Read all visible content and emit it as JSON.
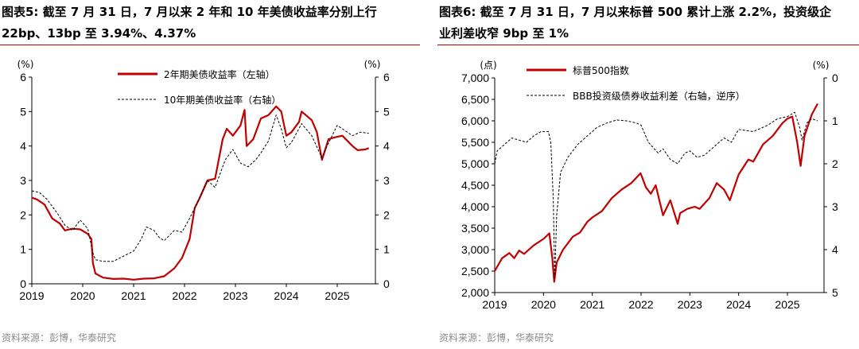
{
  "panels": [
    {
      "title_line1": "图表5:  截至 7 月 31 日，7 月以来 2 年和 10 年美债收益率分别上行",
      "title_line2": "22bp、13bp 至 3.94%、4.37%",
      "source": "资料来源：彭博，华泰研究",
      "colors": {
        "series1": "#c00000",
        "series2": "#000000",
        "accent": "#c00000"
      }
    },
    {
      "title_line1": "图表6:  截至 7 月 31 日，7 月以来标普 500 累计上涨 2.2%，投资级企",
      "title_line2": "业利差收窄 9bp 至 1%",
      "source": "资料来源：彭博，华泰研究",
      "colors": {
        "series1": "#c00000",
        "series2": "#000000",
        "accent": "#c00000"
      }
    }
  ],
  "chart_data": [
    {
      "type": "line",
      "title": "截至 7 月 31 日，7 月以来 2 年和 10 年美债收益率分别上行 22bp、13bp 至 3.94%、4.37%",
      "x_ticks": [
        "2019",
        "2020",
        "2021",
        "2022",
        "2023",
        "2024",
        "2025"
      ],
      "xlim": [
        2019.0,
        2025.75
      ],
      "y_left": {
        "label": "(%)",
        "range": [
          0,
          6
        ],
        "ticks": [
          "0",
          "1",
          "2",
          "3",
          "4",
          "5",
          "6"
        ]
      },
      "y_right": {
        "label": "(%)",
        "range": [
          0,
          6
        ],
        "ticks": [
          "0",
          "1",
          "2",
          "3",
          "4",
          "5",
          "6"
        ],
        "inverted": false
      },
      "legend": [
        "2年期美债收益率（左轴）",
        "10年期美债收益率（右轴）"
      ],
      "legend_position": "top-center",
      "series": [
        {
          "name": "2年期美债收益率（左轴）",
          "axis": "left",
          "style": "solid",
          "x": [
            2019.0,
            2019.1,
            2019.25,
            2019.4,
            2019.55,
            2019.65,
            2019.8,
            2019.95,
            2020.1,
            2020.17,
            2020.2,
            2020.25,
            2020.4,
            2020.6,
            2020.8,
            2021.0,
            2021.2,
            2021.4,
            2021.6,
            2021.8,
            2021.95,
            2022.1,
            2022.2,
            2022.3,
            2022.45,
            2022.6,
            2022.75,
            2022.83,
            2022.95,
            2023.1,
            2023.18,
            2023.22,
            2023.35,
            2023.5,
            2023.65,
            2023.8,
            2023.9,
            2024.0,
            2024.1,
            2024.25,
            2024.3,
            2024.5,
            2024.6,
            2024.7,
            2024.83,
            2024.95,
            2025.1,
            2025.3,
            2025.4,
            2025.55,
            2025.62
          ],
          "values": [
            2.5,
            2.45,
            2.3,
            1.9,
            1.75,
            1.55,
            1.6,
            1.58,
            1.45,
            1.3,
            0.6,
            0.3,
            0.18,
            0.14,
            0.15,
            0.12,
            0.15,
            0.16,
            0.22,
            0.45,
            0.75,
            1.3,
            2.2,
            2.5,
            3.0,
            3.05,
            4.2,
            4.5,
            4.3,
            4.6,
            5.05,
            4.0,
            4.2,
            4.8,
            4.9,
            5.15,
            5.0,
            4.3,
            4.4,
            4.7,
            5.0,
            4.75,
            4.4,
            3.6,
            4.2,
            4.25,
            4.3,
            4.0,
            3.88,
            3.9,
            3.94
          ]
        },
        {
          "name": "10年期美债收益率（右轴）",
          "axis": "right",
          "style": "dashed",
          "x": [
            2019.0,
            2019.15,
            2019.3,
            2019.5,
            2019.65,
            2019.8,
            2019.95,
            2020.1,
            2020.2,
            2020.25,
            2020.4,
            2020.6,
            2020.8,
            2021.0,
            2021.15,
            2021.25,
            2021.4,
            2021.5,
            2021.6,
            2021.8,
            2021.95,
            2022.1,
            2022.3,
            2022.45,
            2022.6,
            2022.8,
            2022.95,
            2023.1,
            2023.25,
            2023.4,
            2023.5,
            2023.65,
            2023.8,
            2023.9,
            2024.0,
            2024.1,
            2024.3,
            2024.5,
            2024.7,
            2024.8,
            2025.0,
            2025.1,
            2025.3,
            2025.45,
            2025.62
          ],
          "values": [
            2.7,
            2.65,
            2.45,
            2.05,
            1.7,
            1.55,
            1.85,
            1.6,
            0.9,
            0.7,
            0.65,
            0.65,
            0.8,
            0.95,
            1.3,
            1.65,
            1.55,
            1.35,
            1.25,
            1.55,
            1.5,
            1.9,
            2.5,
            3.0,
            2.8,
            3.6,
            3.9,
            3.5,
            3.4,
            3.6,
            3.8,
            4.15,
            4.9,
            4.5,
            3.95,
            4.1,
            4.65,
            4.3,
            3.65,
            4.0,
            4.6,
            4.5,
            4.3,
            4.4,
            4.37
          ]
        }
      ]
    },
    {
      "type": "line",
      "title": "截至 7 月 31 日，7 月以来标普 500 累计上涨 2.2%，投资级企业利差收窄 9bp 至 1%",
      "x_ticks": [
        "2019",
        "2020",
        "2021",
        "2022",
        "2023",
        "2024",
        "2025"
      ],
      "xlim": [
        2019.0,
        2025.75
      ],
      "y_left": {
        "label": "(点)",
        "range": [
          2000,
          7000
        ],
        "ticks": [
          "2,000",
          "2,500",
          "3,000",
          "3,500",
          "4,000",
          "4,500",
          "5,000",
          "5,500",
          "6,000",
          "6,500",
          "7,000"
        ]
      },
      "y_right": {
        "label": "(%)",
        "range": [
          0,
          5
        ],
        "ticks": [
          "0",
          "1",
          "2",
          "3",
          "4",
          "5"
        ],
        "inverted": true
      },
      "legend": [
        "标普500指数",
        "BBB投资级债券收益利差（右轴，逆序）"
      ],
      "legend_position": "top-left",
      "series": [
        {
          "name": "标普500指数",
          "axis": "left",
          "style": "solid",
          "x": [
            2019.0,
            2019.15,
            2019.3,
            2019.4,
            2019.5,
            2019.6,
            2019.8,
            2020.0,
            2020.12,
            2020.18,
            2020.22,
            2020.27,
            2020.4,
            2020.6,
            2020.75,
            2020.9,
            2021.0,
            2021.2,
            2021.4,
            2021.6,
            2021.8,
            2021.99,
            2022.1,
            2022.2,
            2022.3,
            2022.45,
            2022.6,
            2022.75,
            2022.8,
            2022.95,
            2023.1,
            2023.2,
            2023.4,
            2023.55,
            2023.7,
            2023.82,
            2024.0,
            2024.2,
            2024.3,
            2024.5,
            2024.7,
            2024.9,
            2025.0,
            2025.1,
            2025.2,
            2025.27,
            2025.35,
            2025.5,
            2025.62
          ],
          "values": [
            2500,
            2800,
            2920,
            2800,
            2980,
            2900,
            3100,
            3250,
            3380,
            2800,
            2250,
            2700,
            3000,
            3300,
            3400,
            3650,
            3750,
            3900,
            4200,
            4400,
            4550,
            4780,
            4450,
            4300,
            4500,
            3800,
            4150,
            3600,
            3850,
            3950,
            4000,
            3950,
            4200,
            4550,
            4400,
            4150,
            4750,
            5100,
            5050,
            5450,
            5650,
            5950,
            6050,
            6100,
            5500,
            4950,
            5650,
            6150,
            6400
          ]
        },
        {
          "name": "BBB投资级债券收益利差（右轴，逆序）",
          "axis": "right",
          "style": "dashed",
          "x": [
            2019.0,
            2019.05,
            2019.2,
            2019.35,
            2019.5,
            2019.65,
            2019.8,
            2019.95,
            2020.1,
            2020.15,
            2020.2,
            2020.23,
            2020.27,
            2020.35,
            2020.5,
            2020.7,
            2020.9,
            2021.1,
            2021.3,
            2021.5,
            2021.7,
            2021.9,
            2022.0,
            2022.15,
            2022.35,
            2022.45,
            2022.6,
            2022.75,
            2022.9,
            2023.0,
            2023.15,
            2023.3,
            2023.5,
            2023.7,
            2023.85,
            2024.0,
            2024.3,
            2024.6,
            2024.8,
            2025.0,
            2025.15,
            2025.25,
            2025.3,
            2025.4,
            2025.5,
            2025.62
          ],
          "values": [
            2.0,
            1.7,
            1.55,
            1.4,
            1.45,
            1.5,
            1.35,
            1.25,
            1.25,
            1.5,
            2.8,
            4.7,
            3.2,
            2.2,
            1.85,
            1.55,
            1.35,
            1.15,
            1.05,
            0.98,
            1.0,
            1.05,
            1.1,
            1.5,
            1.75,
            1.65,
            1.9,
            2.0,
            1.75,
            1.7,
            1.85,
            1.8,
            1.6,
            1.4,
            1.5,
            1.2,
            1.25,
            1.1,
            0.95,
            0.9,
            0.8,
            1.15,
            1.45,
            1.05,
            0.95,
            1.0
          ]
        }
      ]
    }
  ]
}
